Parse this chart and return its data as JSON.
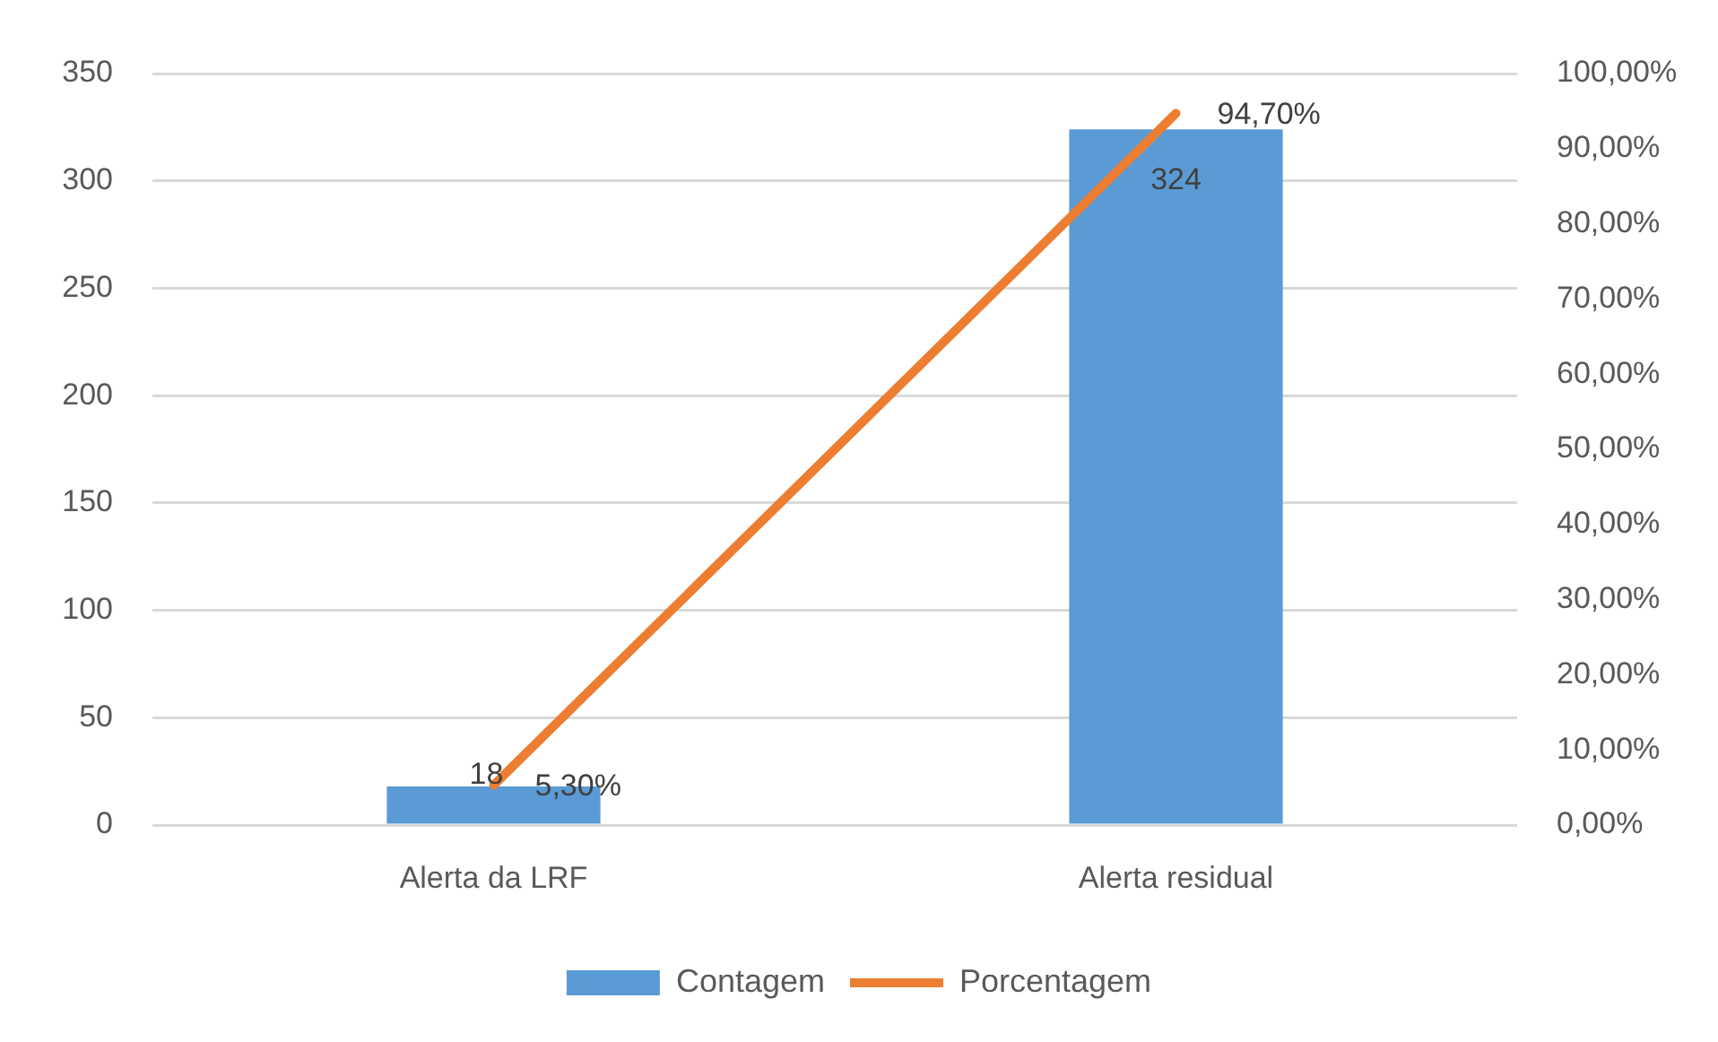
{
  "chart_data": {
    "type": "bar",
    "categories": [
      "Alerta da LRF",
      "Alerta residual"
    ],
    "series": [
      {
        "name": "Contagem",
        "color": "#5b9bd5",
        "values": [
          18,
          324
        ],
        "value_labels": [
          "18",
          "324"
        ]
      },
      {
        "name": "Porcentagem",
        "type": "line",
        "axis": "y2",
        "color": "#ed7d31",
        "values": [
          5.3,
          94.7
        ],
        "value_labels": [
          "5,30%",
          "94,70%"
        ]
      }
    ],
    "ylim": [
      0,
      350
    ],
    "yticks": [
      0,
      50,
      100,
      150,
      200,
      250,
      300,
      350
    ],
    "y2lim": [
      0,
      100
    ],
    "y2ticks": [
      {
        "value": 0,
        "label": "0,00%"
      },
      {
        "value": 10,
        "label": "10,00%"
      },
      {
        "value": 20,
        "label": "20,00%"
      },
      {
        "value": 30,
        "label": "30,00%"
      },
      {
        "value": 40,
        "label": "40,00%"
      },
      {
        "value": 50,
        "label": "50,00%"
      },
      {
        "value": 60,
        "label": "60,00%"
      },
      {
        "value": 70,
        "label": "70,00%"
      },
      {
        "value": 80,
        "label": "80,00%"
      },
      {
        "value": 90,
        "label": "90,00%"
      },
      {
        "value": 100,
        "label": "100,00%"
      }
    ],
    "grid": "y",
    "legend": "bottom",
    "marker": "none"
  }
}
